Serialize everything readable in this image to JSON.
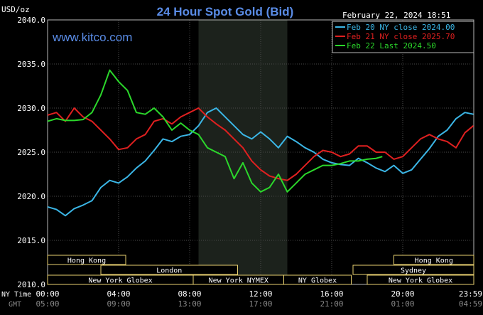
{
  "chart_data": {
    "type": "line",
    "title": "24 Hour Spot Gold (Bid)",
    "timestamp": "February 22, 2024 18:51",
    "brand": "www.kitco.com",
    "y_unit": "USD/oz",
    "ylim": [
      2010,
      2040
    ],
    "y_ticks": [
      "2040.0",
      "2035.0",
      "2030.0",
      "2025.0",
      "2020.0",
      "2015.0",
      "2010.0"
    ],
    "x_row_label": "NY Time",
    "x_ticks": [
      "00:00",
      "04:00",
      "08:00",
      "12:00",
      "16:00",
      "20:00",
      "23:59"
    ],
    "gmt_row_label": "GMT",
    "gmt_ticks": [
      "05:00",
      "09:00",
      "13:00",
      "17:00",
      "21:00",
      "01:00",
      "04:59"
    ],
    "grid": true,
    "legend_position": "top-right",
    "shaded_session": [
      8.5,
      13.5
    ],
    "sessions": {
      "hong_kong_left": "Hong Kong",
      "london": "London",
      "new_york_globex_left": "New York Globex",
      "new_york_nymex": "New York NYMEX",
      "ny_globex": "NY Globex",
      "hong_kong_right": "Hong Kong",
      "sydney": "Sydney",
      "new_york_globex_right": "New York Globex"
    },
    "series": [
      {
        "name": "Feb 20",
        "legend_text": "Feb 20 NY close 2024.00",
        "color": "#3bb6e6",
        "points": [
          [
            0,
            2018.8
          ],
          [
            0.5,
            2018.5
          ],
          [
            1,
            2017.8
          ],
          [
            1.5,
            2018.6
          ],
          [
            2,
            2019.0
          ],
          [
            2.5,
            2019.5
          ],
          [
            3,
            2021.0
          ],
          [
            3.5,
            2021.8
          ],
          [
            4,
            2021.5
          ],
          [
            4.5,
            2022.2
          ],
          [
            5,
            2023.2
          ],
          [
            5.5,
            2024.0
          ],
          [
            6,
            2025.2
          ],
          [
            6.5,
            2026.5
          ],
          [
            7,
            2026.2
          ],
          [
            7.5,
            2026.8
          ],
          [
            8,
            2027.0
          ],
          [
            8.5,
            2028.0
          ],
          [
            9,
            2029.5
          ],
          [
            9.5,
            2030.0
          ],
          [
            10,
            2029.0
          ],
          [
            10.5,
            2028.0
          ],
          [
            11,
            2027.0
          ],
          [
            11.5,
            2026.5
          ],
          [
            12,
            2027.3
          ],
          [
            12.5,
            2026.5
          ],
          [
            13,
            2025.5
          ],
          [
            13.5,
            2026.8
          ],
          [
            14,
            2026.2
          ],
          [
            14.5,
            2025.5
          ],
          [
            15,
            2025.0
          ],
          [
            15.5,
            2024.2
          ],
          [
            16,
            2023.8
          ],
          [
            16.5,
            2023.6
          ],
          [
            17,
            2023.5
          ],
          [
            17.5,
            2024.3
          ],
          [
            18,
            2023.8
          ],
          [
            18.5,
            2023.2
          ],
          [
            19,
            2022.8
          ],
          [
            19.5,
            2023.5
          ],
          [
            20,
            2022.6
          ],
          [
            20.5,
            2023.0
          ],
          [
            21,
            2024.2
          ],
          [
            21.5,
            2025.4
          ],
          [
            22,
            2026.8
          ],
          [
            22.5,
            2027.5
          ],
          [
            23,
            2028.8
          ],
          [
            23.5,
            2029.5
          ],
          [
            23.98,
            2029.3
          ]
        ]
      },
      {
        "name": "Feb 21",
        "legend_text": "Feb 21 NY close 2025.70",
        "color": "#e02020",
        "points": [
          [
            0,
            2029.2
          ],
          [
            0.5,
            2029.5
          ],
          [
            1,
            2028.5
          ],
          [
            1.5,
            2030.0
          ],
          [
            2,
            2029.0
          ],
          [
            2.5,
            2028.5
          ],
          [
            3,
            2027.5
          ],
          [
            3.5,
            2026.5
          ],
          [
            4,
            2025.3
          ],
          [
            4.5,
            2025.5
          ],
          [
            5,
            2026.5
          ],
          [
            5.5,
            2027.0
          ],
          [
            6,
            2028.5
          ],
          [
            6.5,
            2028.8
          ],
          [
            7,
            2028.2
          ],
          [
            7.5,
            2029.0
          ],
          [
            8,
            2029.5
          ],
          [
            8.5,
            2030.0
          ],
          [
            9,
            2029.0
          ],
          [
            9.5,
            2028.2
          ],
          [
            10,
            2027.5
          ],
          [
            10.5,
            2026.5
          ],
          [
            11,
            2025.5
          ],
          [
            11.5,
            2024.0
          ],
          [
            12,
            2023.0
          ],
          [
            12.5,
            2022.3
          ],
          [
            13,
            2022.0
          ],
          [
            13.5,
            2021.8
          ],
          [
            14,
            2022.5
          ],
          [
            14.5,
            2023.5
          ],
          [
            15,
            2024.5
          ],
          [
            15.5,
            2025.2
          ],
          [
            16,
            2025.0
          ],
          [
            16.5,
            2024.5
          ],
          [
            17,
            2024.8
          ],
          [
            17.5,
            2025.7
          ],
          [
            18,
            2025.7
          ],
          [
            18.5,
            2025.0
          ],
          [
            19,
            2025.0
          ],
          [
            19.5,
            2024.2
          ],
          [
            20,
            2024.5
          ],
          [
            20.5,
            2025.5
          ],
          [
            21,
            2026.5
          ],
          [
            21.5,
            2027.0
          ],
          [
            22,
            2026.5
          ],
          [
            22.5,
            2026.2
          ],
          [
            23,
            2025.5
          ],
          [
            23.5,
            2027.2
          ],
          [
            23.98,
            2028.0
          ]
        ]
      },
      {
        "name": "Feb 22",
        "legend_text": "Feb 22 Last 2024.50",
        "color": "#2bd82b",
        "points": [
          [
            0,
            2028.5
          ],
          [
            0.5,
            2028.8
          ],
          [
            1,
            2028.6
          ],
          [
            1.5,
            2028.6
          ],
          [
            2,
            2028.7
          ],
          [
            2.5,
            2029.5
          ],
          [
            3,
            2031.5
          ],
          [
            3.5,
            2034.3
          ],
          [
            4,
            2033.0
          ],
          [
            4.5,
            2032.0
          ],
          [
            5,
            2029.5
          ],
          [
            5.5,
            2029.3
          ],
          [
            6,
            2030.0
          ],
          [
            6.5,
            2029.0
          ],
          [
            7,
            2027.5
          ],
          [
            7.5,
            2028.3
          ],
          [
            8,
            2027.5
          ],
          [
            8.5,
            2027.0
          ],
          [
            9,
            2025.5
          ],
          [
            9.5,
            2025.0
          ],
          [
            10,
            2024.5
          ],
          [
            10.5,
            2022.0
          ],
          [
            11,
            2023.8
          ],
          [
            11.5,
            2021.5
          ],
          [
            12,
            2020.5
          ],
          [
            12.5,
            2021.0
          ],
          [
            13,
            2022.5
          ],
          [
            13.5,
            2020.5
          ],
          [
            14,
            2021.5
          ],
          [
            14.5,
            2022.5
          ],
          [
            15,
            2023.0
          ],
          [
            15.5,
            2023.5
          ],
          [
            16,
            2023.5
          ],
          [
            16.5,
            2023.7
          ],
          [
            17,
            2024.0
          ],
          [
            17.5,
            2024.0
          ],
          [
            18,
            2024.2
          ],
          [
            18.5,
            2024.3
          ],
          [
            18.85,
            2024.5
          ]
        ]
      }
    ]
  }
}
